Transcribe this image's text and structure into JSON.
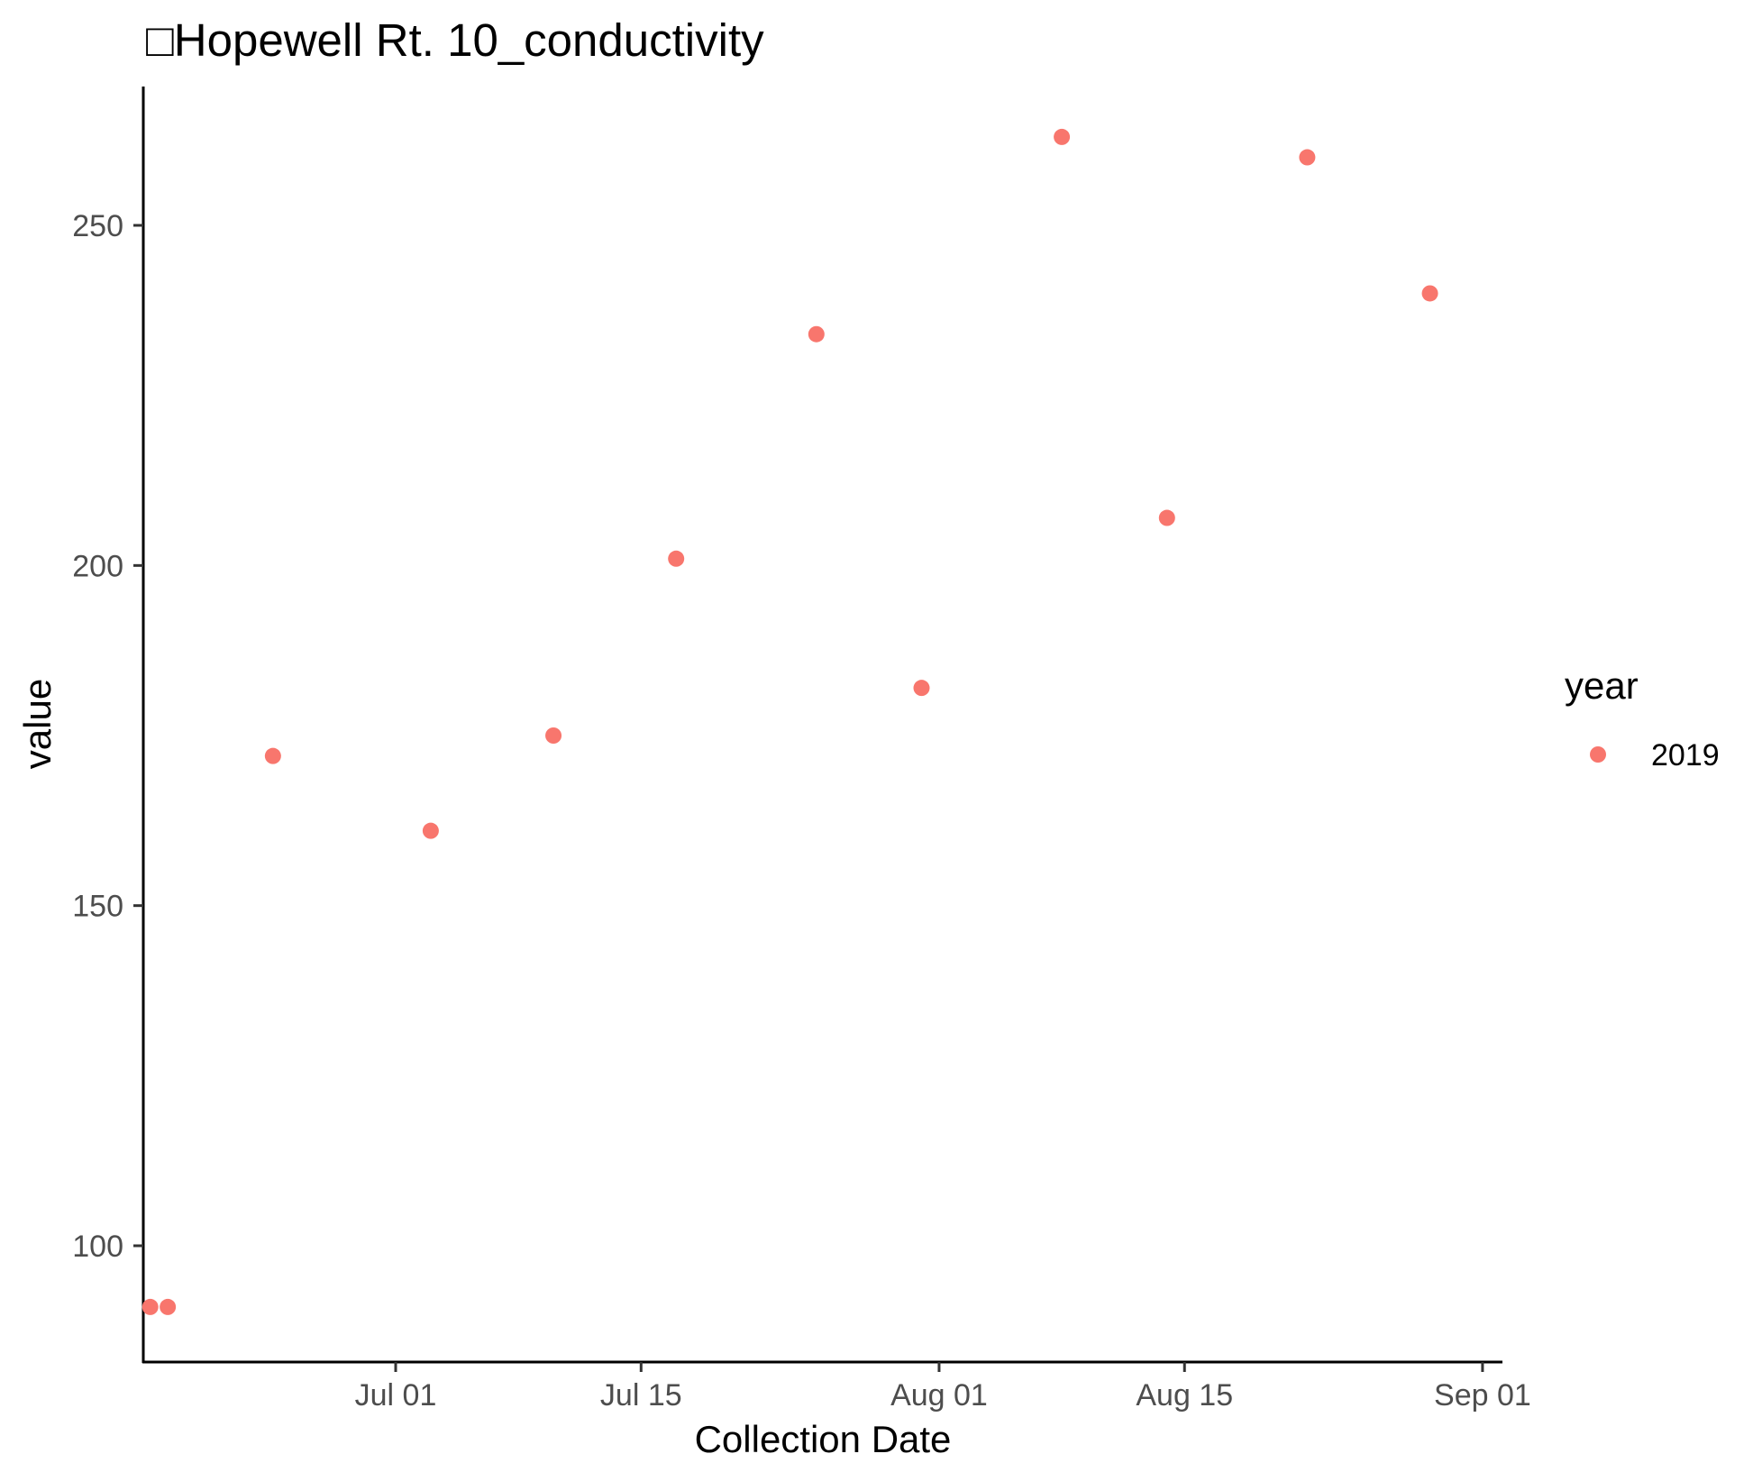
{
  "chart_data": {
    "type": "scatter",
    "title": "□Hopewell Rt. 10_conductivity",
    "xlabel": "Collection Date",
    "ylabel": "value",
    "x_ticks": [
      "Jul 01",
      "Jul 15",
      "Aug 01",
      "Aug 15",
      "Sep 01"
    ],
    "y_ticks": [
      "100",
      "150",
      "200",
      "250"
    ],
    "ylim": [
      82,
      270
    ],
    "xlim": [
      "2019-06-20",
      "2019-09-02"
    ],
    "grid": false,
    "legend": {
      "title": "year",
      "position": "right",
      "entries": [
        "2019"
      ]
    },
    "series": [
      {
        "name": "2019",
        "color": "#F8766D",
        "points": [
          {
            "x": "2019-06-17",
            "y": 91
          },
          {
            "x": "2019-06-18",
            "y": 91
          },
          {
            "x": "2019-06-24",
            "y": 172
          },
          {
            "x": "2019-07-03",
            "y": 161
          },
          {
            "x": "2019-07-10",
            "y": 175
          },
          {
            "x": "2019-07-17",
            "y": 201
          },
          {
            "x": "2019-07-25",
            "y": 234
          },
          {
            "x": "2019-07-31",
            "y": 182
          },
          {
            "x": "2019-08-08",
            "y": 263
          },
          {
            "x": "2019-08-14",
            "y": 207
          },
          {
            "x": "2019-08-22",
            "y": 260
          },
          {
            "x": "2019-08-29",
            "y": 240
          }
        ]
      }
    ]
  }
}
